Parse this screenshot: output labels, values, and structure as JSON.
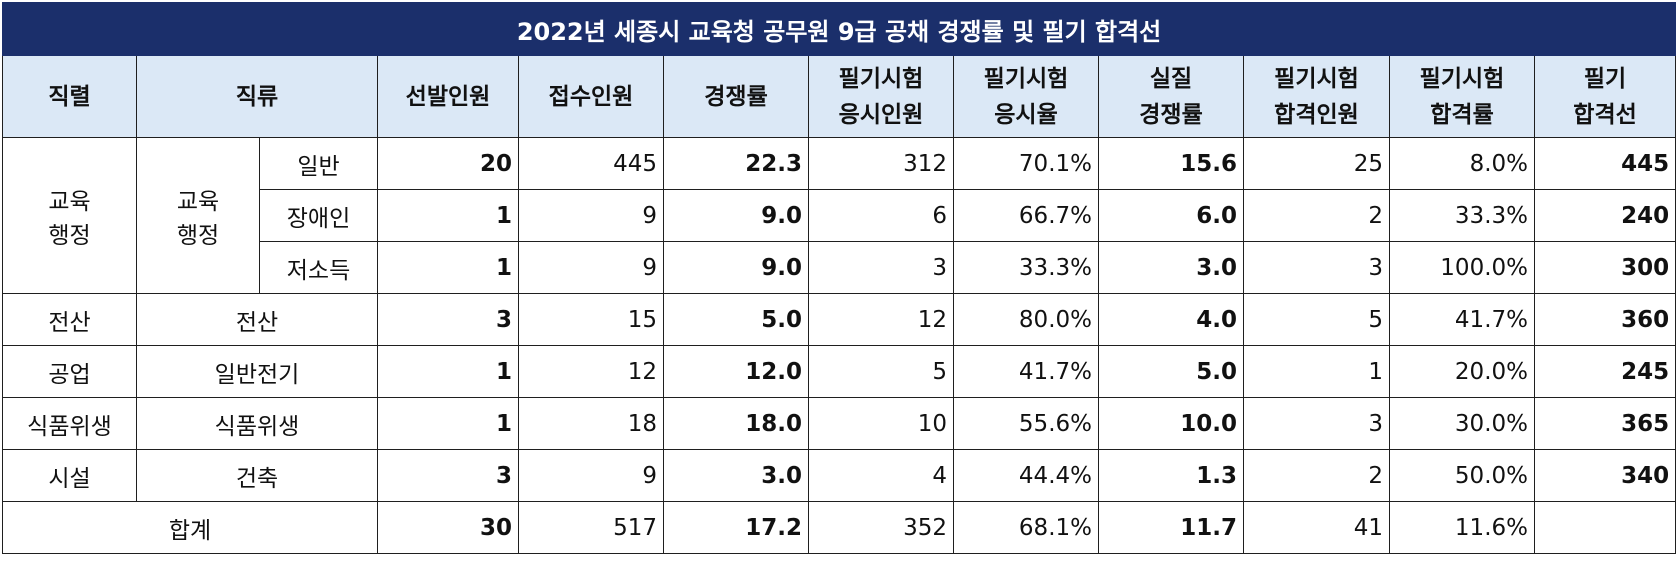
{
  "title": "2022년 세종시 교육청 공무원 9급 공채 경쟁률 및 필기 합격선",
  "headers": {
    "jikryeol": "직렬",
    "jikryu": "직류",
    "seonbal": "선발인원",
    "jeopsu": "접수인원",
    "gyeongjaeng": "경쟁률",
    "pilgi_eungsi_1": "필기시험",
    "pilgi_eungsi_2": "응시인원",
    "eungsiyul_1": "필기시험",
    "eungsiyul_2": "응시율",
    "siljil_1": "실질",
    "siljil_2": "경쟁률",
    "hapgyeok_in_1": "필기시험",
    "hapgyeok_in_2": "합격인원",
    "hapgyeok_ryul_1": "필기시험",
    "hapgyeok_ryul_2": "합격률",
    "hapgyeokseon_1": "필기",
    "hapgyeokseon_2": "합격선"
  },
  "groups": {
    "edu_jikryeol_1": "교육",
    "edu_jikryeol_2": "행정",
    "edu_jikryu_1": "교육",
    "edu_jikryu_2": "행정"
  },
  "rows": [
    {
      "jikryeol": "",
      "jikryu": "",
      "sub": "일반",
      "seonbal": "20",
      "jeopsu": "445",
      "gyeongjaeng": "22.3",
      "eungsi": "312",
      "eungsiyul": "70.1%",
      "siljil": "15.6",
      "hapgyeok_in": "25",
      "hapgyeok_ryul": "8.0%",
      "hapgyeokseon": "445"
    },
    {
      "jikryeol": "",
      "jikryu": "",
      "sub": "장애인",
      "seonbal": "1",
      "jeopsu": "9",
      "gyeongjaeng": "9.0",
      "eungsi": "6",
      "eungsiyul": "66.7%",
      "siljil": "6.0",
      "hapgyeok_in": "2",
      "hapgyeok_ryul": "33.3%",
      "hapgyeokseon": "240"
    },
    {
      "jikryeol": "",
      "jikryu": "",
      "sub": "저소득",
      "seonbal": "1",
      "jeopsu": "9",
      "gyeongjaeng": "9.0",
      "eungsi": "3",
      "eungsiyul": "33.3%",
      "siljil": "3.0",
      "hapgyeok_in": "3",
      "hapgyeok_ryul": "100.0%",
      "hapgyeokseon": "300"
    },
    {
      "jikryeol": "전산",
      "jikryu": "전산",
      "sub": "",
      "seonbal": "3",
      "jeopsu": "15",
      "gyeongjaeng": "5.0",
      "eungsi": "12",
      "eungsiyul": "80.0%",
      "siljil": "4.0",
      "hapgyeok_in": "5",
      "hapgyeok_ryul": "41.7%",
      "hapgyeokseon": "360"
    },
    {
      "jikryeol": "공업",
      "jikryu": "일반전기",
      "sub": "",
      "seonbal": "1",
      "jeopsu": "12",
      "gyeongjaeng": "12.0",
      "eungsi": "5",
      "eungsiyul": "41.7%",
      "siljil": "5.0",
      "hapgyeok_in": "1",
      "hapgyeok_ryul": "20.0%",
      "hapgyeokseon": "245"
    },
    {
      "jikryeol": "식품위생",
      "jikryu": "식품위생",
      "sub": "",
      "seonbal": "1",
      "jeopsu": "18",
      "gyeongjaeng": "18.0",
      "eungsi": "10",
      "eungsiyul": "55.6%",
      "siljil": "10.0",
      "hapgyeok_in": "3",
      "hapgyeok_ryul": "30.0%",
      "hapgyeokseon": "365"
    },
    {
      "jikryeol": "시설",
      "jikryu": "건축",
      "sub": "",
      "seonbal": "3",
      "jeopsu": "9",
      "gyeongjaeng": "3.0",
      "eungsi": "4",
      "eungsiyul": "44.4%",
      "siljil": "1.3",
      "hapgyeok_in": "2",
      "hapgyeok_ryul": "50.0%",
      "hapgyeokseon": "340"
    }
  ],
  "total": {
    "label": "합계",
    "seonbal": "30",
    "jeopsu": "517",
    "gyeongjaeng": "17.2",
    "eungsi": "352",
    "eungsiyul": "68.1%",
    "siljil": "11.7",
    "hapgyeok_in": "41",
    "hapgyeok_ryul": "11.6%",
    "hapgyeokseon": ""
  },
  "colors": {
    "title_bg": "#1b2f6b",
    "header_bg": "#dbe8f6",
    "cutoff_text": "#2e75b6"
  }
}
